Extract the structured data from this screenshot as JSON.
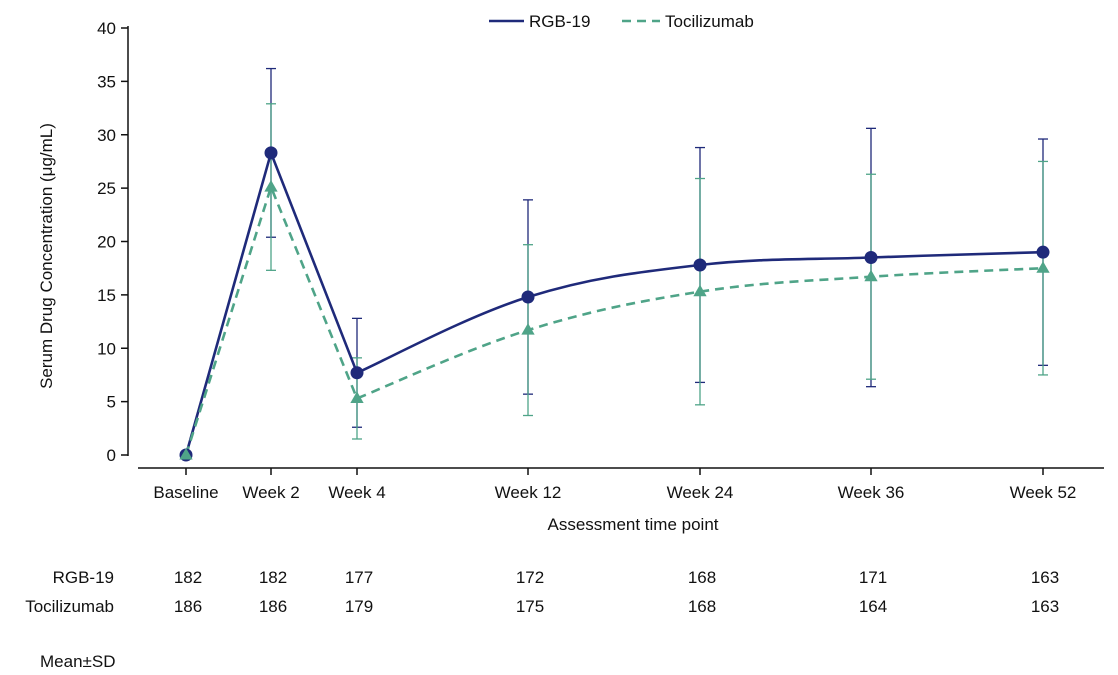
{
  "chart_data": {
    "type": "line",
    "title": "",
    "xlabel": "Assessment time point",
    "ylabel": "Serum Drug Concentration (μg/mL)",
    "ylim": [
      0,
      40
    ],
    "yticks": [
      0,
      5,
      10,
      15,
      20,
      25,
      30,
      35,
      40
    ],
    "categories": [
      "Baseline",
      "Week 2",
      "Week 4",
      "Week 12",
      "Week 24",
      "Week 36",
      "Week 52"
    ],
    "weeks": [
      0,
      2,
      4,
      12,
      24,
      36,
      52
    ],
    "grid": false,
    "legend_position": "top-center",
    "series": [
      {
        "name": "RGB-19",
        "color": "#1f2a7a",
        "line_style": "solid",
        "marker": "circle",
        "values": [
          0,
          28.3,
          7.7,
          14.8,
          17.8,
          18.5,
          19.0
        ],
        "sd": [
          0,
          7.9,
          5.1,
          9.1,
          11.0,
          12.1,
          10.6
        ]
      },
      {
        "name": "Tocilizumab",
        "color": "#4fa488",
        "line_style": "dashed",
        "marker": "triangle",
        "values": [
          0,
          25.1,
          5.3,
          11.7,
          15.3,
          16.7,
          17.5
        ],
        "sd": [
          0,
          7.8,
          3.8,
          8.0,
          10.6,
          9.6,
          10.0
        ]
      }
    ],
    "n_at_risk": [
      {
        "name": "RGB-19",
        "values": [
          "182",
          "182",
          "177",
          "172",
          "168",
          "171",
          "163"
        ]
      },
      {
        "name": "Tocilizumab",
        "values": [
          "186",
          "186",
          "179",
          "175",
          "168",
          "164",
          "163"
        ]
      }
    ],
    "footnote": "Mean±SD"
  }
}
